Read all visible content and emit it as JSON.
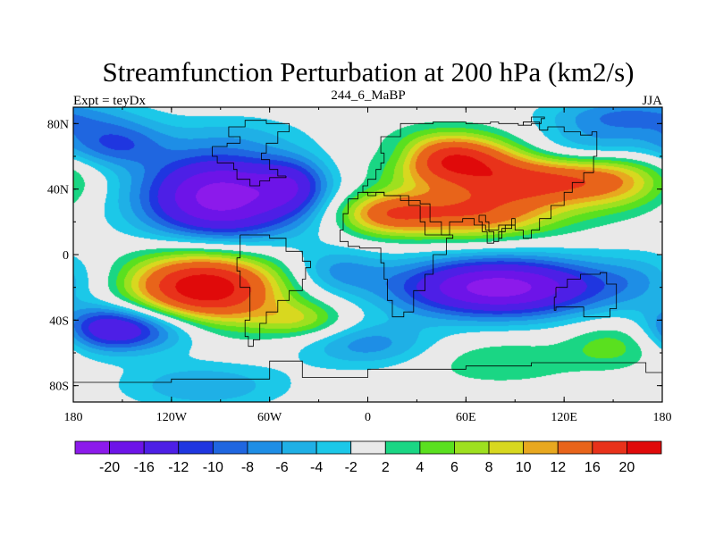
{
  "chart_data": {
    "type": "heatmap",
    "title": "Streamfunction Perturbation at 200 hPa (km2/s)",
    "left_string": "Expt = teyDx",
    "center_string": "244_6_MaBP",
    "right_string": "JJA",
    "x_ticks": [
      "180",
      "120W",
      "60W",
      "0",
      "60E",
      "120E",
      "180"
    ],
    "x_tick_values": [
      -180,
      -120,
      -60,
      0,
      60,
      120,
      180
    ],
    "y_ticks": [
      "80N",
      "40N",
      "0",
      "40S",
      "80S"
    ],
    "y_tick_values": [
      80,
      40,
      0,
      -40,
      -80
    ],
    "xlim": [
      -180,
      180
    ],
    "ylim": [
      -90,
      90
    ],
    "missing_value_color": "#e6e6e6",
    "colorbar": {
      "labels": [
        "-20",
        "-16",
        "-12",
        "-10",
        "-8",
        "-6",
        "-4",
        "-2",
        "2",
        "4",
        "6",
        "8",
        "10",
        "12",
        "16",
        "20"
      ],
      "levels": [
        -20,
        -16,
        -12,
        -10,
        -8,
        -6,
        -4,
        -2,
        2,
        4,
        6,
        8,
        10,
        12,
        16,
        20
      ],
      "colors": [
        "#8c1aeb",
        "#6d14e8",
        "#4d1fe6",
        "#1f36e0",
        "#1f66e0",
        "#1e8ee6",
        "#1fb0e6",
        "#1cc8e8",
        "#e9e9e9",
        "#1ad684",
        "#5ae01f",
        "#9ee01f",
        "#d8d81f",
        "#e8a81f",
        "#e8641a",
        "#e8321a",
        "#e00a0a"
      ]
    },
    "centers": [
      {
        "lon": 50,
        "lat": 58,
        "amp": 20,
        "slon": 28,
        "slat": 11
      },
      {
        "lon": 100,
        "lat": 45,
        "amp": 14,
        "slon": 30,
        "slat": 10
      },
      {
        "lon": 150,
        "lat": 45,
        "amp": 10,
        "slon": 25,
        "slat": 12
      },
      {
        "lon": 60,
        "lat": 25,
        "amp": 15,
        "slon": 40,
        "slat": 11
      },
      {
        "lon": 10,
        "lat": 25,
        "amp": 9,
        "slon": 20,
        "slat": 9
      },
      {
        "lon": -80,
        "lat": 75,
        "amp": -2,
        "slon": 30,
        "slat": 8
      },
      {
        "lon": -100,
        "lat": -20,
        "amp": 24,
        "slon": 33,
        "slat": 16
      },
      {
        "lon": -40,
        "lat": -40,
        "amp": 7,
        "slon": 20,
        "slat": 8
      },
      {
        "lon": -155,
        "lat": 68,
        "amp": -9,
        "slon": 22,
        "slat": 10
      },
      {
        "lon": -90,
        "lat": 35,
        "amp": -22,
        "slon": 35,
        "slat": 20
      },
      {
        "lon": -45,
        "lat": 42,
        "amp": -8,
        "slon": 15,
        "slat": 12
      },
      {
        "lon": 20,
        "lat": 60,
        "amp": -5,
        "slon": 15,
        "slat": 8
      },
      {
        "lon": 140,
        "lat": 67,
        "amp": -6,
        "slon": 28,
        "slat": 9
      },
      {
        "lon": 160,
        "lat": 85,
        "amp": -8,
        "slon": 35,
        "slat": 8
      },
      {
        "lon": 80,
        "lat": -20,
        "amp": -22,
        "slon": 45,
        "slat": 13
      },
      {
        "lon": -20,
        "lat": -10,
        "amp": -6,
        "slon": 20,
        "slat": 10
      },
      {
        "lon": 170,
        "lat": -15,
        "amp": -4,
        "slon": 25,
        "slat": 12
      },
      {
        "lon": -130,
        "lat": -45,
        "amp": -9,
        "slon": 25,
        "slat": 10
      },
      {
        "lon": -160,
        "lat": -45,
        "amp": -12,
        "slon": 20,
        "slat": 10
      },
      {
        "lon": 0,
        "lat": -55,
        "amp": -7,
        "slon": 30,
        "slat": 10
      },
      {
        "lon": -100,
        "lat": -80,
        "amp": -6,
        "slon": 35,
        "slat": 10
      },
      {
        "lon": 80,
        "lat": -65,
        "amp": 4,
        "slon": 35,
        "slat": 10
      },
      {
        "lon": 150,
        "lat": -55,
        "amp": 5,
        "slon": 20,
        "slat": 10
      }
    ]
  }
}
